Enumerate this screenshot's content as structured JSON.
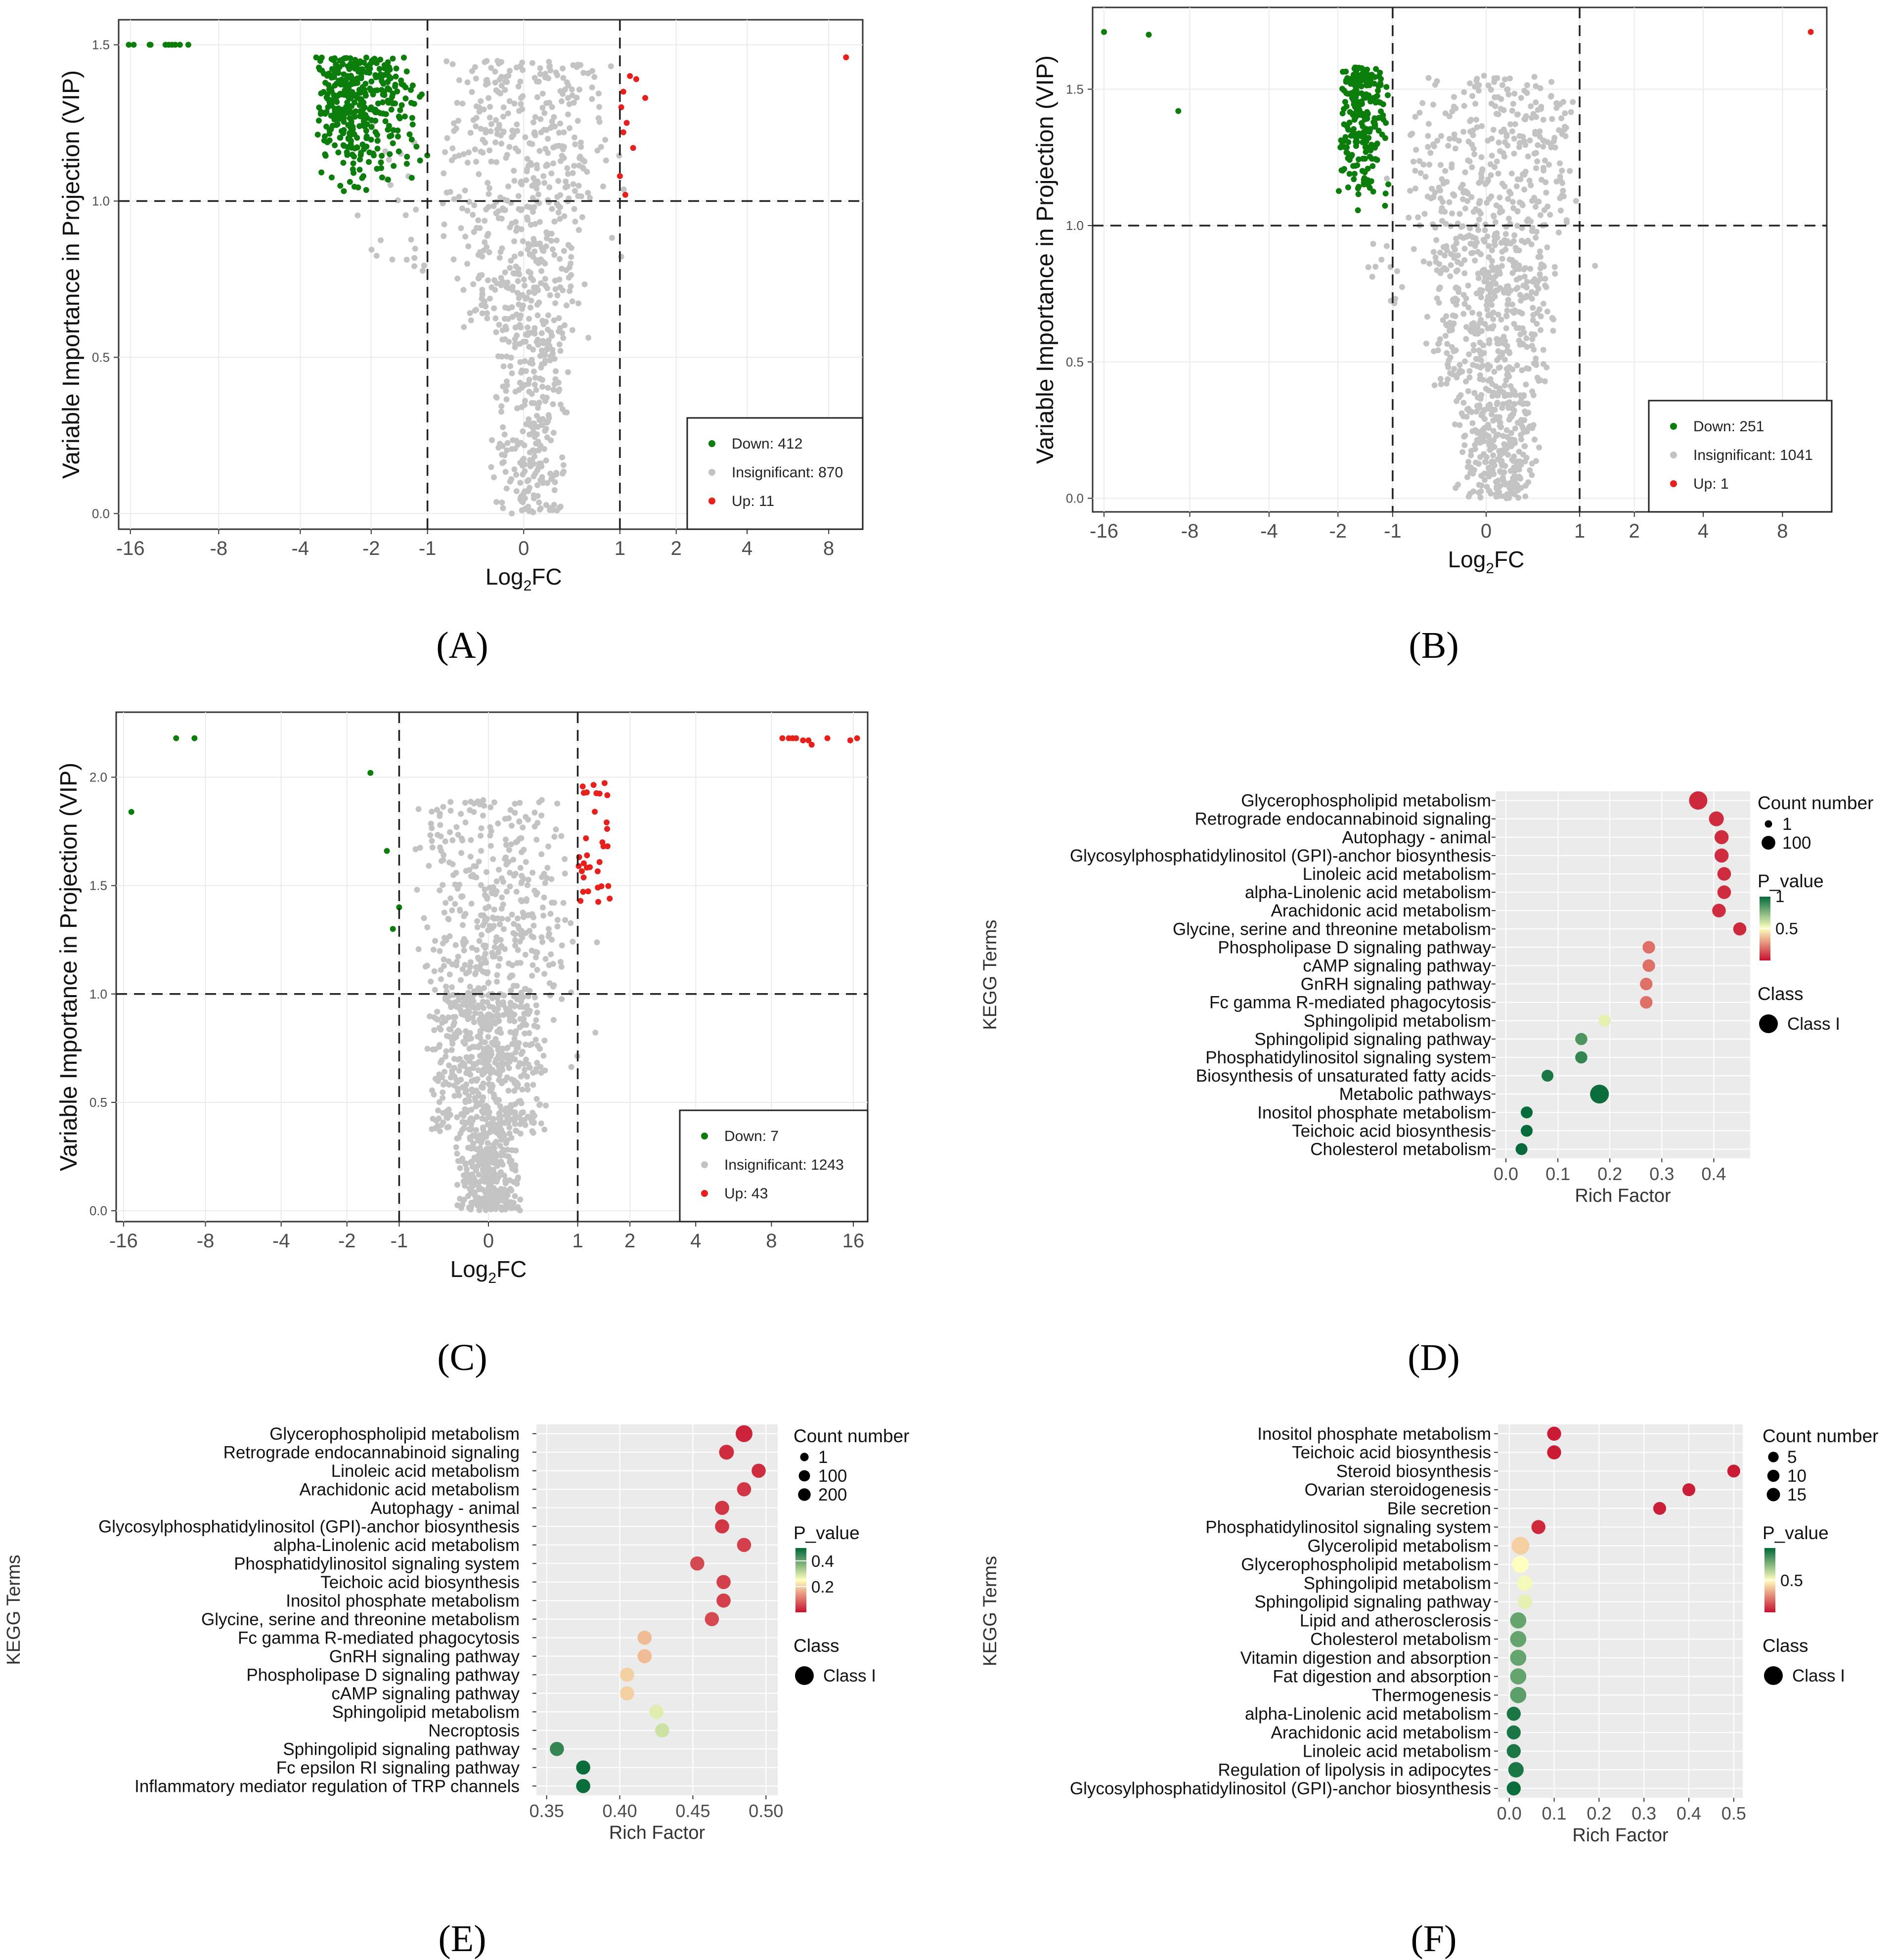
{
  "panel_labels": [
    "(A)",
    "(B)",
    "(C)",
    "(D)",
    "(E)",
    "(F)"
  ],
  "colors": {
    "down": "#0b7d0b",
    "insignificant": "#c3c3c3",
    "up": "#e8201c",
    "grid_bg": "#ebebeb",
    "pval_high": "#006837",
    "pval_mid": "#ffffbf",
    "pval_low": "#c8102e"
  },
  "chart_data": [
    {
      "panel": "A",
      "type": "scatter",
      "xlabel": "Log2FC",
      "xlabel_main": "Log",
      "xlabel_sub": "2",
      "xlabel_tail": "FC",
      "ylabel": "Variable Importance in Projection (VIP)",
      "x_ticks": [
        -16,
        -8,
        -4,
        -2,
        -1,
        0,
        1,
        2,
        4,
        8
      ],
      "x_tick_labels": [
        "-16",
        "-8",
        "-4",
        "-2",
        "-1",
        "0",
        "1",
        "2",
        "4",
        "8"
      ],
      "y_ticks": [
        0.0,
        0.5,
        1.0,
        1.5
      ],
      "y_tick_labels": [
        "0.0",
        "0.5",
        "1.0",
        "1.5"
      ],
      "xlim": [
        -17.5,
        10.5
      ],
      "ylim": [
        -0.05,
        1.58
      ],
      "thresholds": {
        "vip": 1.0,
        "log2fc": [
          -1,
          1
        ]
      },
      "legend": [
        {
          "label": "Down: 412",
          "class": "down"
        },
        {
          "label": "Insignificant: 870",
          "class": "insignificant"
        },
        {
          "label": "Up: 11",
          "class": "up"
        }
      ],
      "down_points": [
        [
          -16.2,
          1.5
        ],
        [
          -15.6,
          1.5
        ],
        [
          -13.8,
          1.5
        ],
        [
          -13.7,
          1.5
        ],
        [
          -12.2,
          1.5
        ],
        [
          -11.9,
          1.5
        ],
        [
          -11.6,
          1.5
        ],
        [
          -11.3,
          1.5
        ],
        [
          -10.9,
          1.5
        ],
        [
          -10.2,
          1.5
        ]
      ],
      "up_points": [
        [
          1.15,
          1.4
        ],
        [
          1.25,
          1.39
        ],
        [
          1.4,
          1.33
        ],
        [
          1.05,
          1.35
        ],
        [
          1.1,
          1.25
        ],
        [
          1.05,
          1.22
        ],
        [
          1.2,
          1.17
        ],
        [
          1.0,
          1.08
        ],
        [
          1.08,
          1.02
        ],
        [
          1.02,
          1.3
        ],
        [
          9.2,
          1.46
        ]
      ],
      "clusters": {
        "down": {
          "x": [
            -3.5,
            -1.0
          ],
          "y": [
            1.0,
            1.46
          ],
          "n": 380
        },
        "insignificant": [
          {
            "x": [
              -0.8,
              0.9
            ],
            "y": [
              1.0,
              1.45
            ],
            "n": 260
          },
          {
            "x": [
              -0.6,
              0.6
            ],
            "y": [
              0.55,
              1.0
            ],
            "n": 260
          },
          {
            "x": [
              -0.3,
              0.4
            ],
            "y": [
              0.0,
              0.55
            ],
            "n": 240
          },
          {
            "x": [
              -2.8,
              1.3
            ],
            "y": [
              0.75,
              1.25
            ],
            "n": 60
          }
        ]
      }
    },
    {
      "panel": "B",
      "type": "scatter",
      "xlabel": "Log2FC",
      "xlabel_main": "Log",
      "xlabel_sub": "2",
      "xlabel_tail": "FC",
      "ylabel": "Variable Importance in Projection (VIP)",
      "x_ticks": [
        -16,
        -8,
        -4,
        -2,
        -1,
        0,
        1,
        2,
        4,
        8
      ],
      "x_tick_labels": [
        "-16",
        "-8",
        "-4",
        "-2",
        "-1",
        "0",
        "1",
        "2",
        "4",
        "8"
      ],
      "y_ticks": [
        0.0,
        0.5,
        1.0,
        1.5
      ],
      "y_tick_labels": [
        "0.0",
        "0.5",
        "1.0",
        "1.5"
      ],
      "xlim": [
        -17.5,
        11.5
      ],
      "ylim": [
        -0.05,
        1.8
      ],
      "thresholds": {
        "vip": 1.0,
        "log2fc": [
          -1,
          1
        ]
      },
      "legend": [
        {
          "label": "Down: 251",
          "class": "down"
        },
        {
          "label": "Insignificant: 1041",
          "class": "insignificant"
        },
        {
          "label": "Up: 1",
          "class": "up"
        }
      ],
      "down_points": [
        [
          -16.0,
          1.71
        ],
        [
          -11.2,
          1.7
        ],
        [
          -8.8,
          1.42
        ]
      ],
      "up_points": [
        [
          10.1,
          1.71
        ]
      ],
      "clusters": {
        "down": {
          "x": [
            -2.0,
            -1.0
          ],
          "y": [
            1.05,
            1.58
          ],
          "n": 240
        },
        "insignificant": [
          {
            "x": [
              -0.8,
              1.0
            ],
            "y": [
              1.0,
              1.55
            ],
            "n": 300
          },
          {
            "x": [
              -0.6,
              0.7
            ],
            "y": [
              0.4,
              1.0
            ],
            "n": 400
          },
          {
            "x": [
              -0.3,
              0.5
            ],
            "y": [
              0.0,
              0.4
            ],
            "n": 300
          },
          {
            "x": [
              -1.5,
              1.3
            ],
            "y": [
              0.7,
              1.2
            ],
            "n": 50
          }
        ]
      }
    },
    {
      "panel": "C",
      "type": "scatter",
      "xlabel": "Log2FC",
      "xlabel_main": "Log",
      "xlabel_sub": "2",
      "xlabel_tail": "FC",
      "ylabel": "Variable Importance in Projection (VIP)",
      "x_ticks": [
        -16,
        -8,
        -4,
        -2,
        -1,
        0,
        1,
        2,
        4,
        8,
        16
      ],
      "x_tick_labels": [
        "-16",
        "-8",
        "-4",
        "-2",
        "-1",
        "0",
        "1",
        "2",
        "4",
        "8",
        "16"
      ],
      "y_ticks": [
        0.0,
        0.5,
        1.0,
        1.5,
        2.0
      ],
      "y_tick_labels": [
        "0.0",
        "0.5",
        "1.0",
        "1.5",
        "2.0"
      ],
      "xlim": [
        -17.0,
        18.0
      ],
      "ylim": [
        -0.05,
        2.3
      ],
      "thresholds": {
        "vip": 1.0,
        "log2fc": [
          -1,
          1
        ]
      },
      "legend": [
        {
          "label": "Down: 7",
          "class": "down"
        },
        {
          "label": "Insignificant: 1243",
          "class": "insignificant"
        },
        {
          "label": "Up: 43",
          "class": "up"
        }
      ],
      "down_points": [
        [
          -15.0,
          1.84
        ],
        [
          -10.3,
          2.18
        ],
        [
          -8.8,
          2.18
        ],
        [
          -1.5,
          2.02
        ],
        [
          -1.2,
          1.66
        ],
        [
          -1.0,
          1.4
        ],
        [
          -1.1,
          1.3
        ]
      ],
      "up_points": [
        [
          8.8,
          2.18
        ],
        [
          9.3,
          2.18
        ],
        [
          9.6,
          2.18
        ],
        [
          9.9,
          2.18
        ],
        [
          10.5,
          2.17
        ],
        [
          11.0,
          2.17
        ],
        [
          11.3,
          2.15
        ],
        [
          12.9,
          2.18
        ],
        [
          15.6,
          2.17
        ],
        [
          16.5,
          2.18
        ]
      ],
      "clusters": {
        "up": {
          "x": [
            1.0,
            1.6
          ],
          "y": [
            1.42,
            1.98
          ],
          "n": 33
        },
        "insignificant": [
          {
            "x": [
              -0.8,
              0.9
            ],
            "y": [
              1.0,
              1.9
            ],
            "n": 350
          },
          {
            "x": [
              -0.6,
              0.6
            ],
            "y": [
              0.35,
              1.0
            ],
            "n": 550
          },
          {
            "x": [
              -0.3,
              0.3
            ],
            "y": [
              0.0,
              0.35
            ],
            "n": 300
          },
          {
            "x": [
              -1.0,
              1.5
            ],
            "y": [
              0.6,
              1.4
            ],
            "n": 50
          }
        ]
      }
    },
    {
      "panel": "D",
      "type": "bubble",
      "title": "",
      "xlabel": "Rich Factor",
      "ylabel": "KEGG Terms",
      "xlim": [
        -0.02,
        0.47
      ],
      "x_ticks": [
        0.0,
        0.1,
        0.2,
        0.3,
        0.4
      ],
      "x_tick_labels": [
        "0.0",
        "0.1",
        "0.2",
        "0.3",
        "0.4"
      ],
      "terms": [
        "Glycerophospholipid metabolism",
        "Retrograde endocannabinoid signaling",
        "Autophagy - animal",
        "Glycosylphosphatidylinositol (GPI)-anchor biosynthesis",
        "Linoleic acid metabolism",
        "alpha-Linolenic acid metabolism",
        "Arachidonic acid metabolism",
        "Glycine, serine and threonine metabolism",
        "Phospholipase D signaling pathway",
        "cAMP signaling pathway",
        "GnRH signaling pathway",
        "Fc gamma R-mediated phagocytosis",
        "Sphingolipid metabolism",
        "Sphingolipid signaling pathway",
        "Phosphatidylinositol signaling system",
        "Biosynthesis of unsaturated fatty acids",
        "Metabolic pathways",
        "Inositol phosphate metabolism",
        "Teichoic acid biosynthesis",
        "Cholesterol metabolism"
      ],
      "rich_factor": [
        0.37,
        0.405,
        0.415,
        0.415,
        0.42,
        0.42,
        0.41,
        0.45,
        0.275,
        0.275,
        0.27,
        0.27,
        0.19,
        0.145,
        0.145,
        0.08,
        0.18,
        0.04,
        0.04,
        0.03
      ],
      "count": [
        100,
        40,
        30,
        30,
        25,
        25,
        25,
        20,
        15,
        15,
        15,
        15,
        12,
        12,
        12,
        10,
        110,
        10,
        10,
        10
      ],
      "p_value": [
        0.05,
        0.06,
        0.06,
        0.06,
        0.06,
        0.06,
        0.06,
        0.05,
        0.2,
        0.2,
        0.2,
        0.2,
        0.55,
        0.85,
        0.9,
        0.95,
        0.98,
        0.99,
        0.99,
        0.99
      ],
      "size_legend_title": "Count number",
      "size_legend": [
        {
          "label": "1",
          "value": 1
        },
        {
          "label": "100",
          "value": 100
        }
      ],
      "color_legend_title": "P_value",
      "color_legend_ticks": [
        "1",
        "0.5"
      ],
      "color_range": [
        0.0,
        1.0
      ],
      "class_legend_title": "Class",
      "class_legend_label": "Class I"
    },
    {
      "panel": "E",
      "type": "bubble",
      "title": "",
      "xlabel": "Rich Factor",
      "ylabel": "KEGG Terms",
      "xlim": [
        0.343,
        0.508
      ],
      "x_ticks": [
        0.35,
        0.4,
        0.45,
        0.5
      ],
      "x_tick_labels": [
        "0.35",
        "0.40",
        "0.45",
        "0.50"
      ],
      "terms": [
        "Glycerophospholipid metabolism",
        "Retrograde endocannabinoid signaling",
        "Linoleic acid metabolism",
        "Arachidonic acid metabolism",
        "Autophagy - animal",
        "Glycosylphosphatidylinositol (GPI)-anchor biosynthesis",
        "alpha-Linolenic acid metabolism",
        "Phosphatidylinositol signaling system",
        "Teichoic acid biosynthesis",
        "Inositol phosphate metabolism",
        "Glycine, serine and threonine metabolism",
        "Fc gamma R-mediated phagocytosis",
        "GnRH signaling pathway",
        "Phospholipase D signaling pathway",
        "cAMP signaling pathway",
        "Sphingolipid metabolism",
        "Necroptosis",
        "Sphingolipid signaling pathway",
        "Fc epsilon RI signaling pathway",
        "Inflammatory mediator regulation of TRP channels"
      ],
      "rich_factor": [
        0.485,
        0.473,
        0.495,
        0.485,
        0.47,
        0.47,
        0.485,
        0.453,
        0.471,
        0.471,
        0.463,
        0.417,
        0.417,
        0.405,
        0.405,
        0.425,
        0.429,
        0.357,
        0.375,
        0.375
      ],
      "count": [
        200,
        90,
        60,
        60,
        60,
        60,
        60,
        60,
        60,
        60,
        60,
        60,
        60,
        60,
        60,
        60,
        60,
        60,
        60,
        60
      ],
      "p_value": [
        0.02,
        0.03,
        0.03,
        0.04,
        0.04,
        0.04,
        0.05,
        0.06,
        0.05,
        0.05,
        0.06,
        0.18,
        0.18,
        0.2,
        0.2,
        0.28,
        0.3,
        0.45,
        0.49,
        0.49
      ],
      "size_legend_title": "Count number",
      "size_legend": [
        {
          "label": "1",
          "value": 1
        },
        {
          "label": "100",
          "value": 100
        },
        {
          "label": "200",
          "value": 200
        }
      ],
      "color_legend_title": "P_value",
      "color_legend_ticks": [
        "0.4",
        "0.2"
      ],
      "color_range": [
        0.0,
        0.5
      ],
      "class_legend_title": "Class",
      "class_legend_label": "Class I"
    },
    {
      "panel": "F",
      "type": "bubble",
      "title": "",
      "xlabel": "Rich Factor",
      "ylabel": "KEGG Terms",
      "xlim": [
        -0.025,
        0.52
      ],
      "x_ticks": [
        0.0,
        0.1,
        0.2,
        0.3,
        0.4,
        0.5
      ],
      "x_tick_labels": [
        "0.0",
        "0.1",
        "0.2",
        "0.3",
        "0.4",
        "0.5"
      ],
      "terms": [
        "Inositol phosphate metabolism",
        "Teichoic acid biosynthesis",
        "Steroid biosynthesis",
        "Ovarian steroidogenesis",
        "Bile secretion",
        "Phosphatidylinositol signaling system",
        "Glycerolipid metabolism",
        "Glycerophospholipid metabolism",
        "Sphingolipid metabolism",
        "Sphingolipid signaling pathway",
        "Lipid and atherosclerosis",
        "Cholesterol metabolism",
        "Vitamin digestion and absorption",
        "Fat digestion and absorption",
        "Thermogenesis",
        "alpha-Linolenic acid metabolism",
        "Arachidonic acid metabolism",
        "Linoleic acid metabolism",
        "Regulation of lipolysis in adipocytes",
        "Glycosylphosphatidylinositol (GPI)-anchor biosynthesis"
      ],
      "rich_factor": [
        0.1,
        0.1,
        0.5,
        0.4,
        0.335,
        0.065,
        0.025,
        0.025,
        0.035,
        0.035,
        0.02,
        0.02,
        0.02,
        0.02,
        0.02,
        0.01,
        0.01,
        0.01,
        0.015,
        0.01
      ],
      "count": [
        5,
        5,
        3,
        3,
        3,
        5,
        15,
        12,
        8,
        6,
        10,
        10,
        10,
        10,
        10,
        5,
        5,
        5,
        8,
        5
      ],
      "p_value": [
        0.02,
        0.02,
        0.02,
        0.03,
        0.03,
        0.05,
        0.4,
        0.5,
        0.52,
        0.55,
        0.8,
        0.8,
        0.8,
        0.8,
        0.82,
        0.95,
        0.95,
        0.95,
        0.95,
        0.98
      ],
      "size_legend_title": "Count number",
      "size_legend": [
        {
          "label": "5",
          "value": 5
        },
        {
          "label": "10",
          "value": 10
        },
        {
          "label": "15",
          "value": 15
        }
      ],
      "color_legend_title": "P_value",
      "color_legend_ticks": [
        "0.5"
      ],
      "color_range": [
        0.0,
        1.0
      ],
      "class_legend_title": "Class",
      "class_legend_label": "Class I"
    }
  ]
}
